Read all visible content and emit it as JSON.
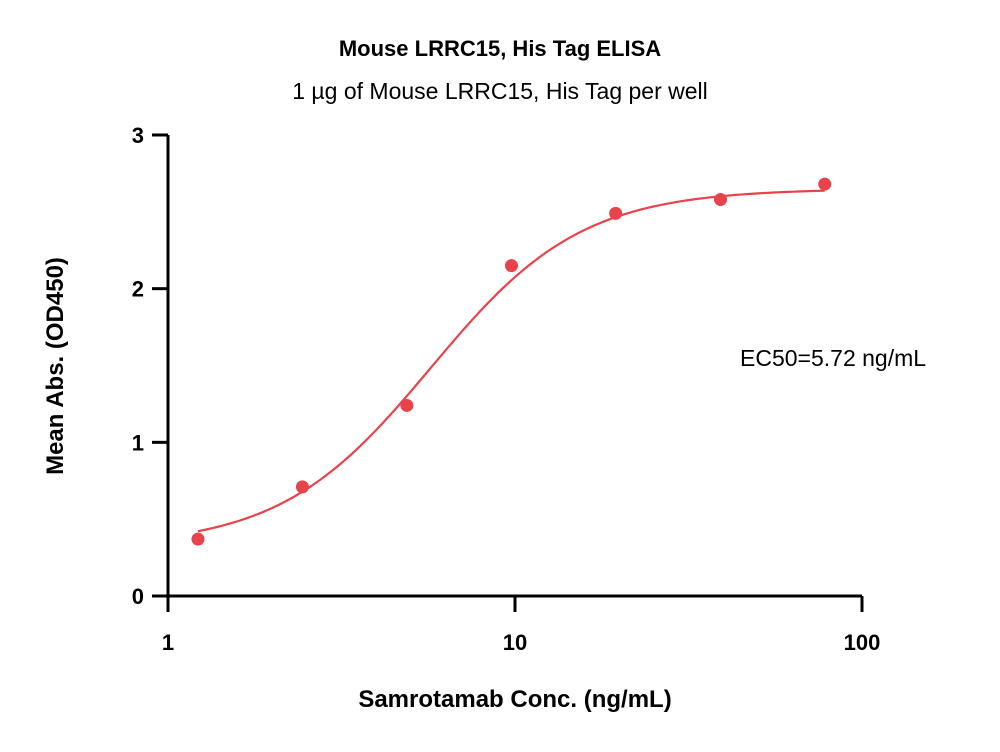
{
  "chart_data": {
    "type": "scatter",
    "title": "Mouse LRRC15, His Tag ELISA",
    "subtitle": "1 µg of Mouse LRRC15, His Tag per well",
    "xlabel": "Samrotamab Conc. (ng/mL)",
    "ylabel": "Mean Abs. (OD450)",
    "x_scale": "log",
    "xlim": [
      1,
      100
    ],
    "ylim": [
      0,
      3
    ],
    "x_ticks": [
      {
        "value": 1,
        "label": "1"
      },
      {
        "value": 10,
        "label": "10"
      },
      {
        "value": 100,
        "label": "100"
      }
    ],
    "y_ticks": [
      {
        "value": 0,
        "label": "0"
      },
      {
        "value": 1,
        "label": "1"
      },
      {
        "value": 2,
        "label": "2"
      },
      {
        "value": 3,
        "label": "3"
      }
    ],
    "grid": false,
    "points": [
      {
        "x": 1.22,
        "y": 0.37
      },
      {
        "x": 2.44,
        "y": 0.71
      },
      {
        "x": 4.88,
        "y": 1.24
      },
      {
        "x": 9.77,
        "y": 2.15
      },
      {
        "x": 19.5,
        "y": 2.49
      },
      {
        "x": 39.1,
        "y": 2.58
      },
      {
        "x": 78.1,
        "y": 2.68
      }
    ],
    "fit": {
      "bottom": 0.32,
      "top": 2.65,
      "ec50": 5.72,
      "hill": 2.0
    },
    "annotation": "EC50=5.72 ng/mL",
    "colors": {
      "series": "#e8434a",
      "axis": "#000000"
    }
  }
}
